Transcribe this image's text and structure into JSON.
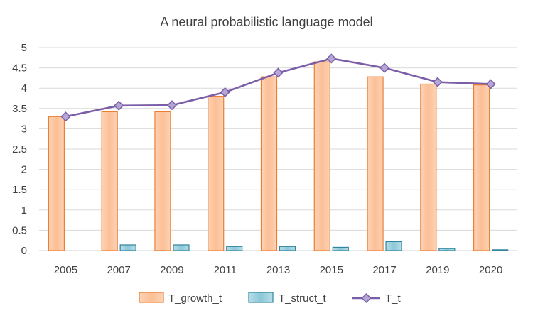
{
  "chart_data": {
    "type": "bar",
    "title": "A neural probabilistic language model",
    "categories": [
      "2005",
      "2007",
      "2009",
      "2011",
      "2013",
      "2015",
      "2017",
      "2019",
      "2020"
    ],
    "series": [
      {
        "name": "T_growth_t",
        "type": "bar",
        "values": [
          3.3,
          3.42,
          3.42,
          3.8,
          4.28,
          4.65,
          4.28,
          4.1,
          4.08
        ]
      },
      {
        "name": "T_struct_t",
        "type": "bar",
        "values": [
          0.0,
          0.14,
          0.14,
          0.1,
          0.1,
          0.08,
          0.22,
          0.05,
          0.02
        ]
      },
      {
        "name": "T_t",
        "type": "line",
        "values": [
          3.3,
          3.57,
          3.58,
          3.9,
          4.38,
          4.73,
          4.5,
          4.15,
          4.1
        ]
      }
    ],
    "ylim": [
      0,
      5
    ],
    "yticks": [
      "0",
      "0.5",
      "1",
      "1.5",
      "2",
      "2.5",
      "3",
      "3.5",
      "4",
      "4.5",
      "5"
    ],
    "grid": true,
    "legend_position": "bottom",
    "colors": {
      "T_growth_t_fill": "#fcc9a6",
      "T_growth_t_stroke": "#ed7d31",
      "T_struct_t_fill": "#9fd0de",
      "T_struct_t_stroke": "#31859c",
      "T_t_line": "#7b5ea7",
      "T_t_marker": "#b4a7d6"
    }
  }
}
